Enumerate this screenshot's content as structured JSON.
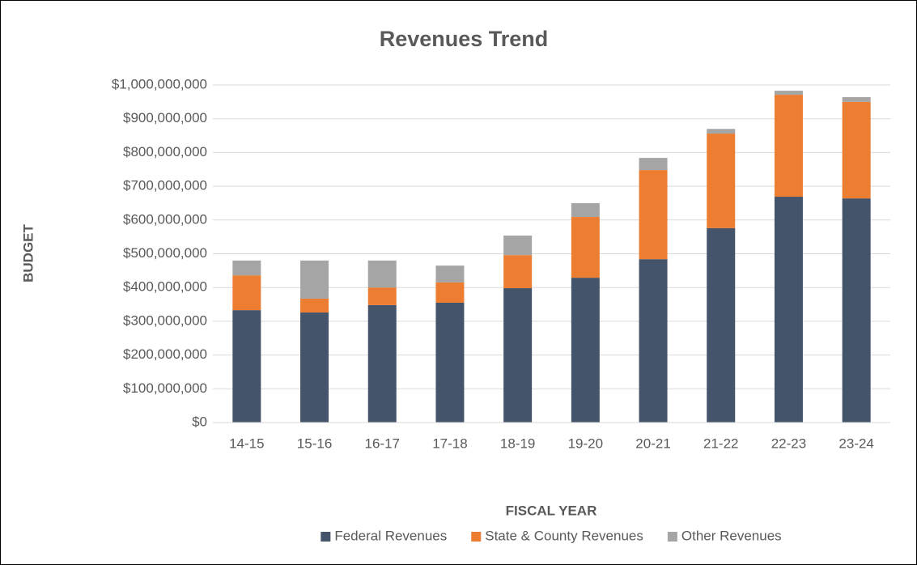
{
  "chart_data": {
    "type": "stacked_bar",
    "title": "Revenues Trend",
    "x_label": "FISCAL YEAR",
    "y_label": "BUDGET",
    "categories": [
      "14-15",
      "15-16",
      "16-17",
      "17-18",
      "18-19",
      "19-20",
      "20-21",
      "21-22",
      "22-23",
      "23-24"
    ],
    "series": [
      {
        "name": "Federal Revenues",
        "color": "#44546a",
        "values": [
          333000000,
          326000000,
          348000000,
          355000000,
          398000000,
          429000000,
          484000000,
          576000000,
          669000000,
          664000000
        ]
      },
      {
        "name": "State & County Revenues",
        "color": "#ed7d31",
        "values": [
          103000000,
          41000000,
          52000000,
          60000000,
          98000000,
          180000000,
          264000000,
          280000000,
          302000000,
          286000000
        ]
      },
      {
        "name": "Other Revenues",
        "color": "#a5a5a5",
        "values": [
          44000000,
          113000000,
          80000000,
          50000000,
          58000000,
          41000000,
          36000000,
          14000000,
          12000000,
          14000000
        ]
      }
    ],
    "ylim": [
      0,
      1000000000
    ],
    "yticks": [
      {
        "value": 0,
        "label": "$0"
      },
      {
        "value": 100000000,
        "label": "$100,000,000"
      },
      {
        "value": 200000000,
        "label": "$200,000,000"
      },
      {
        "value": 300000000,
        "label": "$300,000,000"
      },
      {
        "value": 400000000,
        "label": "$400,000,000"
      },
      {
        "value": 500000000,
        "label": "$500,000,000"
      },
      {
        "value": 600000000,
        "label": "$600,000,000"
      },
      {
        "value": 700000000,
        "label": "$700,000,000"
      },
      {
        "value": 800000000,
        "label": "$800,000,000"
      },
      {
        "value": 900000000,
        "label": "$900,000,000"
      },
      {
        "value": 1000000000,
        "label": "$1,000,000,000"
      }
    ],
    "grid": true,
    "legend": "bottom"
  }
}
